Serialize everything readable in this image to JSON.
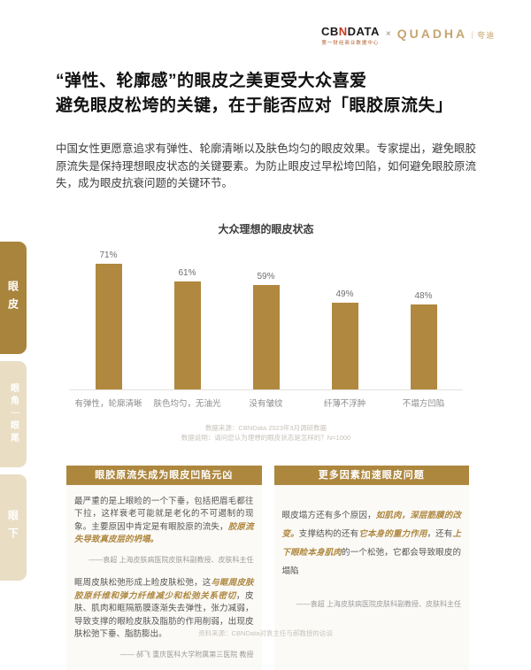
{
  "header": {
    "cbn_part1": "CB",
    "cbn_part2": "N",
    "cbn_part3": "DATA",
    "cbn_tagline": "第一财经商业数据中心",
    "separator": "×",
    "brand_logo": "QUADHA",
    "brand_cn": "｜夸迪"
  },
  "sidebar": {
    "tabs": [
      {
        "label": "眼皮",
        "active": true
      },
      {
        "label": "眼角｜眼尾",
        "active": false
      },
      {
        "label": "眼下",
        "active": false
      }
    ]
  },
  "title": {
    "line1": "“弹性、轮廓感”的眼皮之美更受大众喜爱",
    "line2": "避免眼皮松垮的关键，在于能否应对「眼胶原流失」"
  },
  "intro": "中国女性更愿意追求有弹性、轮廓清晰以及肤色均匀的眼皮效果。专家提出，避免眼胶原流失是保持理想眼皮状态的关键要素。为防止眼皮过早松垮凹陷，如何避免眼胶原流失，成为眼皮抗衰问题的关键环节。",
  "chart_data": {
    "type": "bar",
    "title": "大众理想的眼皮状态",
    "categories": [
      "有弹性，轮廓清晰",
      "肤色均匀，无油光",
      "没有皱纹",
      "纤薄不浮肿",
      "不塌方凹陷"
    ],
    "values": [
      71,
      61,
      59,
      49,
      48
    ],
    "unit": "%",
    "bar_color": "#b1883f",
    "ylim": [
      0,
      80
    ],
    "grid": false,
    "legend": false,
    "source_line1": "数据来源：CBNData 2023年3月调研数据",
    "source_line2": "数据说明：请问您认为理想的眼皮状态是怎样的？N=1000"
  },
  "boxes": {
    "left": {
      "header": "眼胶原流失成为眼皮凹陷元凶",
      "para1_normal": "最严重的是上眼睑的一个下垂，包括把眉毛都往下拉，这样衰老可能就是老化的不可遏制的现象。主要原因中肯定是有眼胶原的流失，",
      "para1_em": "胶原流失导致真皮层的坍塌。",
      "attr1": "——袁超 上海皮肤病医院皮肤科副教授、皮肤科主任",
      "para2_pre": "眶周皮肤松弛形成上睑皮肤松弛，这",
      "para2_em": "与眶周皮肤胶原纤维和弹力纤维减少和松弛关系密切",
      "para2_post": "，皮肤、肌肉和眶隔筋膜逐渐失去弹性，张力减弱，导致支撑的眼睑皮肤及脂肪的作用削弱，出现皮肤松弛下垂、脂肪膨出。",
      "attr2": "—— 郝飞 重庆医科大学附属第三医院 教授"
    },
    "right": {
      "header": "更多因素加速眼皮问题",
      "para_seg1": "眼皮塌方还有多个原因，",
      "para_em1": "如肌肉，深层筋膜的改变。",
      "para_seg2": "支撑结构的还有",
      "para_em2": "它本身的重力作用",
      "para_seg3": "，还有",
      "para_em3": "上下眼睑本身肌肉",
      "para_seg4": "的一个松弛，它都会导致眼皮的塌陷",
      "attr": "——袁超 上海皮肤病医院皮肤科副教授、皮肤科主任"
    }
  },
  "footer": {
    "source": "资料来源：CBNData对袁主任与郝教授的访谈"
  }
}
